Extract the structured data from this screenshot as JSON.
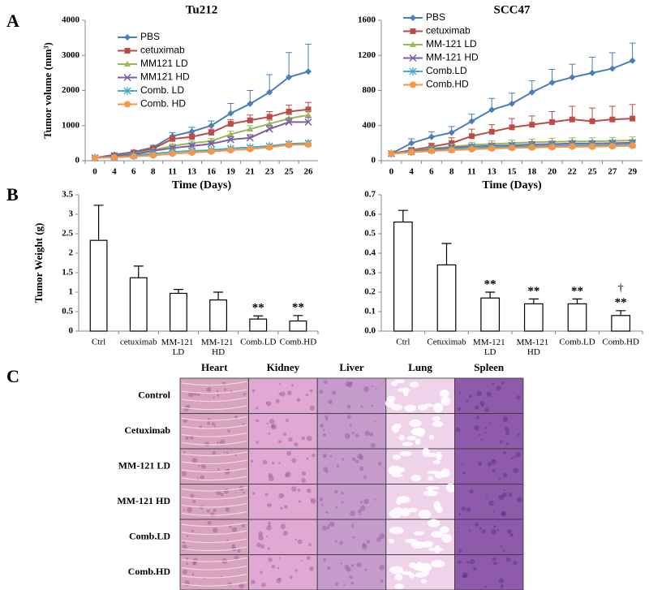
{
  "panel_labels": [
    "A",
    "B",
    "C"
  ],
  "chart_data": [
    {
      "type": "line",
      "title": "Tu212",
      "xlabel": "Time  (Days)",
      "ylabel": "Tumor  volume (mm³)",
      "categories": [
        0,
        4,
        6,
        8,
        11,
        13,
        16,
        19,
        21,
        23,
        25,
        26
      ],
      "ylim": [
        0,
        4000
      ],
      "yticks": [
        0,
        1000,
        2000,
        3000,
        4000
      ],
      "series": [
        {
          "name": "PBS",
          "color": "#4a7ebb",
          "marker": "diamond",
          "values": [
            80,
            170,
            250,
            380,
            700,
            830,
            1000,
            1350,
            1620,
            1950,
            2380,
            2540
          ],
          "errors": [
            20,
            30,
            50,
            60,
            100,
            120,
            130,
            280,
            380,
            500,
            700,
            780
          ]
        },
        {
          "name": "cetuximab",
          "color": "#be4b48",
          "marker": "square",
          "values": [
            80,
            150,
            230,
            340,
            620,
            680,
            800,
            1050,
            1150,
            1250,
            1400,
            1460
          ],
          "errors": [
            20,
            30,
            40,
            50,
            80,
            80,
            100,
            120,
            150,
            150,
            180,
            200
          ]
        },
        {
          "name": "MM121 LD",
          "color": "#98b954",
          "marker": "triangle",
          "values": [
            80,
            140,
            200,
            300,
            420,
            500,
            560,
            750,
            900,
            1050,
            1200,
            1300
          ],
          "errors": [
            20,
            25,
            30,
            40,
            50,
            60,
            70,
            90,
            100,
            100,
            110,
            120
          ]
        },
        {
          "name": "MM121 HD",
          "color": "#7d60a0",
          "marker": "x",
          "values": [
            80,
            140,
            180,
            280,
            360,
            420,
            480,
            600,
            650,
            900,
            1100,
            1100
          ],
          "errors": [
            20,
            25,
            30,
            40,
            50,
            60,
            60,
            80,
            90,
            100,
            120,
            130
          ]
        },
        {
          "name": "Comb. LD",
          "color": "#46aac5",
          "marker": "star",
          "values": [
            80,
            100,
            150,
            200,
            250,
            280,
            300,
            350,
            380,
            420,
            480,
            500
          ],
          "errors": [
            15,
            20,
            20,
            30,
            30,
            40,
            40,
            40,
            50,
            50,
            60,
            60
          ]
        },
        {
          "name": "Comb. HD",
          "color": "#f79646",
          "marker": "circle",
          "values": [
            80,
            90,
            120,
            150,
            200,
            230,
            260,
            300,
            330,
            380,
            450,
            460
          ],
          "errors": [
            15,
            20,
            20,
            30,
            30,
            30,
            40,
            40,
            40,
            50,
            50,
            50
          ]
        }
      ]
    },
    {
      "type": "line",
      "title": "SCC47",
      "xlabel": "Time  (Days)",
      "categories": [
        0,
        4,
        6,
        8,
        11,
        13,
        15,
        18,
        20,
        22,
        25,
        27,
        29
      ],
      "ylim": [
        0,
        1600
      ],
      "yticks": [
        0,
        400,
        800,
        1200,
        1600
      ],
      "series": [
        {
          "name": "PBS",
          "color": "#4a7ebb",
          "marker": "diamond",
          "values": [
            80,
            200,
            270,
            320,
            450,
            580,
            650,
            780,
            890,
            950,
            1000,
            1050,
            1140
          ],
          "errors": [
            0,
            50,
            60,
            70,
            80,
            130,
            120,
            130,
            150,
            150,
            180,
            180,
            200
          ]
        },
        {
          "name": "cetuximab",
          "color": "#be4b48",
          "marker": "square",
          "values": [
            80,
            120,
            160,
            200,
            280,
            330,
            380,
            410,
            440,
            470,
            450,
            470,
            480
          ],
          "errors": [
            0,
            30,
            40,
            60,
            80,
            80,
            100,
            100,
            120,
            150,
            150,
            150,
            160
          ]
        },
        {
          "name": "MM-121 LD",
          "color": "#98b954",
          "marker": "triangle",
          "values": [
            80,
            110,
            140,
            160,
            180,
            190,
            200,
            210,
            215,
            220,
            220,
            225,
            230
          ],
          "errors": [
            0,
            20,
            25,
            30,
            30,
            35,
            35,
            35,
            40,
            40,
            40,
            40,
            40
          ]
        },
        {
          "name": "MM-121 HD",
          "color": "#7d60a0",
          "marker": "x",
          "values": [
            80,
            105,
            130,
            150,
            160,
            170,
            175,
            185,
            190,
            195,
            195,
            200,
            205
          ],
          "errors": [
            0,
            15,
            20,
            20,
            25,
            25,
            25,
            30,
            30,
            30,
            30,
            30,
            30
          ]
        },
        {
          "name": "Comb.LD",
          "color": "#46aac5",
          "marker": "star",
          "values": [
            80,
            100,
            120,
            130,
            150,
            155,
            160,
            165,
            170,
            175,
            175,
            180,
            185
          ],
          "errors": [
            0,
            15,
            15,
            20,
            20,
            20,
            20,
            25,
            25,
            25,
            25,
            25,
            25
          ]
        },
        {
          "name": "Comb.HD",
          "color": "#f79646",
          "marker": "circle",
          "values": [
            80,
            95,
            110,
            120,
            130,
            140,
            145,
            150,
            155,
            160,
            160,
            165,
            170
          ],
          "errors": [
            0,
            10,
            15,
            15,
            20,
            20,
            20,
            20,
            20,
            20,
            20,
            20,
            20
          ]
        }
      ]
    },
    {
      "type": "bar",
      "ylabel": "Tumor Weight (g)",
      "categories": [
        "Ctrl",
        "cetuximab",
        "MM-121 LD",
        "MM-121 HD",
        "Comb.LD",
        "Comb.HD"
      ],
      "values": [
        2.33,
        1.37,
        0.97,
        0.8,
        0.31,
        0.26
      ],
      "errors": [
        0.9,
        0.3,
        0.1,
        0.2,
        0.08,
        0.14
      ],
      "significance": [
        null,
        null,
        null,
        null,
        "**",
        "**"
      ],
      "significance_2": [
        null,
        null,
        null,
        null,
        null,
        null
      ],
      "ylim": [
        0,
        3.5
      ],
      "yticks": [
        0,
        0.5,
        1,
        1.5,
        2,
        2.5,
        3,
        3.5
      ]
    },
    {
      "type": "bar",
      "categories": [
        "Ctrl",
        "Cetuximab",
        "MM-121 LD",
        "MM-121 HD",
        "Comb.LD",
        "Comb.HD"
      ],
      "values": [
        0.56,
        0.34,
        0.17,
        0.14,
        0.14,
        0.08
      ],
      "errors": [
        0.06,
        0.11,
        0.03,
        0.025,
        0.025,
        0.025
      ],
      "significance": [
        null,
        null,
        "**",
        "**",
        "**",
        "**"
      ],
      "significance_2": [
        null,
        null,
        null,
        null,
        null,
        "†"
      ],
      "ylim": [
        0,
        0.7
      ],
      "yticks": [
        {
          "value": 0,
          "label": "0.0"
        },
        0.1,
        0.2,
        0.3,
        0.4,
        0.5,
        0.6,
        0.7
      ]
    }
  ],
  "histology": {
    "columns": [
      "Heart",
      "Kidney",
      "Liver",
      "Lung",
      "Spleen"
    ],
    "rows": [
      "Control",
      "Cetuximab",
      "MM-121 LD",
      "MM-121 HD",
      "Comb.LD",
      "Comb.HD"
    ]
  }
}
